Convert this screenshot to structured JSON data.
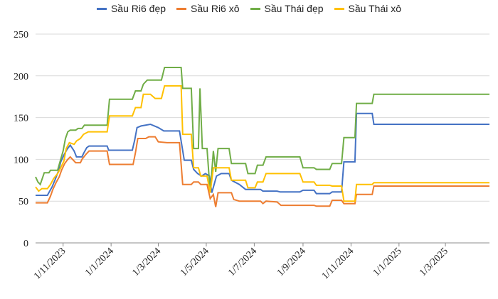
{
  "chart_data": {
    "type": "line",
    "title": "",
    "xlabel": "",
    "ylabel": "",
    "ylim": [
      0,
      250
    ],
    "yticks": [
      0,
      50,
      100,
      150,
      200,
      250
    ],
    "xlim": [
      "2023-09-27",
      "2025-04-26"
    ],
    "xticks": [
      "2023-11-01",
      "2024-01-01",
      "2024-03-01",
      "2024-05-01",
      "2024-07-01",
      "2024-09-01",
      "2024-11-01",
      "2025-01-01",
      "2025-03-01"
    ],
    "xtick_labels": [
      "1/11/2023",
      "1/1/2024",
      "1/3/2024",
      "1/5/2024",
      "1/7/2024",
      "1/9/2024",
      "1/11/2024",
      "1/1/2025",
      "1/3/2025"
    ],
    "grid": "horizontal",
    "legend_position": "top",
    "series": [
      {
        "name": "Sầu Ri6 đẹp",
        "color": "#4472c4",
        "points": [
          [
            "2023-09-27",
            57
          ],
          [
            "2023-10-12",
            57
          ],
          [
            "2023-10-15",
            62
          ],
          [
            "2023-10-18",
            67
          ],
          [
            "2023-10-22",
            76
          ],
          [
            "2023-10-26",
            86
          ],
          [
            "2023-10-29",
            97
          ],
          [
            "2023-11-02",
            105
          ],
          [
            "2023-11-06",
            112
          ],
          [
            "2023-11-10",
            117
          ],
          [
            "2023-11-15",
            110
          ],
          [
            "2023-11-18",
            103
          ],
          [
            "2023-11-25",
            103
          ],
          [
            "2023-11-27",
            107
          ],
          [
            "2023-12-01",
            114
          ],
          [
            "2023-12-04",
            116
          ],
          [
            "2023-12-27",
            116
          ],
          [
            "2023-12-29",
            111
          ],
          [
            "2024-01-28",
            111
          ],
          [
            "2024-01-31",
            123
          ],
          [
            "2024-02-03",
            138
          ],
          [
            "2024-02-08",
            140
          ],
          [
            "2024-02-20",
            142
          ],
          [
            "2024-03-01",
            138
          ],
          [
            "2024-03-08",
            134
          ],
          [
            "2024-03-28",
            134
          ],
          [
            "2024-04-03",
            99
          ],
          [
            "2024-04-12",
            99
          ],
          [
            "2024-04-15",
            88
          ],
          [
            "2024-04-20",
            83
          ],
          [
            "2024-04-25",
            80
          ],
          [
            "2024-04-30",
            83
          ],
          [
            "2024-05-05",
            80
          ],
          [
            "2024-05-08",
            60
          ],
          [
            "2024-05-11",
            70
          ],
          [
            "2024-05-14",
            80
          ],
          [
            "2024-05-20",
            83
          ],
          [
            "2024-05-30",
            83
          ],
          [
            "2024-06-02",
            75
          ],
          [
            "2024-06-12",
            70
          ],
          [
            "2024-06-20",
            64
          ],
          [
            "2024-07-09",
            64
          ],
          [
            "2024-07-12",
            62
          ],
          [
            "2024-07-30",
            62
          ],
          [
            "2024-08-03",
            61
          ],
          [
            "2024-08-28",
            61
          ],
          [
            "2024-09-01",
            63
          ],
          [
            "2024-09-15",
            63
          ],
          [
            "2024-09-18",
            59
          ],
          [
            "2024-10-05",
            59
          ],
          [
            "2024-10-08",
            61
          ],
          [
            "2024-10-20",
            61
          ],
          [
            "2024-10-23",
            97
          ],
          [
            "2024-11-06",
            97
          ],
          [
            "2024-11-08",
            155
          ],
          [
            "2024-11-28",
            155
          ],
          [
            "2024-11-30",
            142
          ],
          [
            "2025-04-26",
            142
          ]
        ]
      },
      {
        "name": "Sầu Ri6 xô",
        "color": "#ed7d31",
        "points": [
          [
            "2023-09-27",
            48
          ],
          [
            "2023-10-12",
            48
          ],
          [
            "2023-10-16",
            56
          ],
          [
            "2023-10-19",
            64
          ],
          [
            "2023-10-23",
            72
          ],
          [
            "2023-10-27",
            79
          ],
          [
            "2023-10-30",
            87
          ],
          [
            "2023-11-03",
            95
          ],
          [
            "2023-11-07",
            100
          ],
          [
            "2023-11-10",
            103
          ],
          [
            "2023-11-14",
            99
          ],
          [
            "2023-11-17",
            96
          ],
          [
            "2023-11-23",
            96
          ],
          [
            "2023-11-25",
            100
          ],
          [
            "2023-11-30",
            106
          ],
          [
            "2023-12-04",
            110
          ],
          [
            "2023-12-27",
            110
          ],
          [
            "2023-12-30",
            94
          ],
          [
            "2024-01-29",
            94
          ],
          [
            "2024-02-01",
            108
          ],
          [
            "2024-02-04",
            125
          ],
          [
            "2024-02-14",
            125
          ],
          [
            "2024-02-18",
            127
          ],
          [
            "2024-02-26",
            127
          ],
          [
            "2024-03-01",
            121
          ],
          [
            "2024-03-12",
            120
          ],
          [
            "2024-03-28",
            120
          ],
          [
            "2024-04-01",
            70
          ],
          [
            "2024-04-12",
            70
          ],
          [
            "2024-04-15",
            73
          ],
          [
            "2024-04-21",
            73
          ],
          [
            "2024-04-24",
            70
          ],
          [
            "2024-05-02",
            70
          ],
          [
            "2024-05-06",
            53
          ],
          [
            "2024-05-10",
            58
          ],
          [
            "2024-05-13",
            43
          ],
          [
            "2024-05-16",
            60
          ],
          [
            "2024-06-02",
            60
          ],
          [
            "2024-06-05",
            52
          ],
          [
            "2024-06-12",
            50
          ],
          [
            "2024-07-09",
            50
          ],
          [
            "2024-07-12",
            47
          ],
          [
            "2024-07-16",
            50
          ],
          [
            "2024-07-30",
            49
          ],
          [
            "2024-08-04",
            45
          ],
          [
            "2024-08-28",
            45
          ],
          [
            "2024-09-01",
            45
          ],
          [
            "2024-09-15",
            45
          ],
          [
            "2024-09-18",
            44
          ],
          [
            "2024-10-05",
            44
          ],
          [
            "2024-10-08",
            51
          ],
          [
            "2024-10-20",
            51
          ],
          [
            "2024-10-23",
            47
          ],
          [
            "2024-11-06",
            47
          ],
          [
            "2024-11-08",
            58
          ],
          [
            "2024-11-28",
            58
          ],
          [
            "2024-11-30",
            68
          ],
          [
            "2025-04-26",
            68
          ]
        ]
      },
      {
        "name": "Sầu Thái đẹp",
        "color": "#70ad47",
        "points": [
          [
            "2023-09-27",
            79
          ],
          [
            "2023-09-30",
            73
          ],
          [
            "2023-10-03",
            70
          ],
          [
            "2023-10-08",
            84
          ],
          [
            "2023-10-14",
            84
          ],
          [
            "2023-10-16",
            87
          ],
          [
            "2023-10-25",
            87
          ],
          [
            "2023-10-28",
            97
          ],
          [
            "2023-11-01",
            110
          ],
          [
            "2023-11-04",
            125
          ],
          [
            "2023-11-07",
            133
          ],
          [
            "2023-11-10",
            135
          ],
          [
            "2023-11-17",
            135
          ],
          [
            "2023-11-20",
            137
          ],
          [
            "2023-11-25",
            137
          ],
          [
            "2023-11-28",
            141
          ],
          [
            "2023-12-27",
            141
          ],
          [
            "2023-12-30",
            172
          ],
          [
            "2024-01-28",
            172
          ],
          [
            "2024-02-01",
            182
          ],
          [
            "2024-02-08",
            182
          ],
          [
            "2024-02-11",
            190
          ],
          [
            "2024-02-16",
            195
          ],
          [
            "2024-03-05",
            195
          ],
          [
            "2024-03-09",
            210
          ],
          [
            "2024-03-30",
            210
          ],
          [
            "2024-04-01",
            185
          ],
          [
            "2024-04-12",
            185
          ],
          [
            "2024-04-15",
            113
          ],
          [
            "2024-04-21",
            113
          ],
          [
            "2024-04-23",
            185
          ],
          [
            "2024-04-26",
            113
          ],
          [
            "2024-05-02",
            113
          ],
          [
            "2024-05-06",
            60
          ],
          [
            "2024-05-10",
            110
          ],
          [
            "2024-05-13",
            85
          ],
          [
            "2024-05-16",
            113
          ],
          [
            "2024-05-30",
            113
          ],
          [
            "2024-06-02",
            95
          ],
          [
            "2024-06-20",
            95
          ],
          [
            "2024-06-23",
            83
          ],
          [
            "2024-07-02",
            83
          ],
          [
            "2024-07-05",
            93
          ],
          [
            "2024-07-12",
            93
          ],
          [
            "2024-07-16",
            103
          ],
          [
            "2024-08-28",
            103
          ],
          [
            "2024-09-01",
            90
          ],
          [
            "2024-09-15",
            90
          ],
          [
            "2024-09-18",
            88
          ],
          [
            "2024-10-05",
            88
          ],
          [
            "2024-10-08",
            95
          ],
          [
            "2024-10-20",
            95
          ],
          [
            "2024-10-23",
            126
          ],
          [
            "2024-11-06",
            126
          ],
          [
            "2024-11-08",
            167
          ],
          [
            "2024-11-28",
            167
          ],
          [
            "2024-11-30",
            178
          ],
          [
            "2025-04-26",
            178
          ]
        ]
      },
      {
        "name": "Sầu Thái xô",
        "color": "#ffc000",
        "points": [
          [
            "2023-09-27",
            67
          ],
          [
            "2023-10-01",
            62
          ],
          [
            "2023-10-05",
            65
          ],
          [
            "2023-10-12",
            65
          ],
          [
            "2023-10-16",
            70
          ],
          [
            "2023-10-20",
            77
          ],
          [
            "2023-10-25",
            83
          ],
          [
            "2023-10-29",
            90
          ],
          [
            "2023-11-02",
            98
          ],
          [
            "2023-11-05",
            113
          ],
          [
            "2023-11-09",
            120
          ],
          [
            "2023-11-15",
            118
          ],
          [
            "2023-11-18",
            122
          ],
          [
            "2023-11-23",
            125
          ],
          [
            "2023-11-27",
            130
          ],
          [
            "2023-12-03",
            133
          ],
          [
            "2023-12-27",
            133
          ],
          [
            "2023-12-30",
            152
          ],
          [
            "2024-01-28",
            152
          ],
          [
            "2024-02-01",
            162
          ],
          [
            "2024-02-08",
            162
          ],
          [
            "2024-02-11",
            178
          ],
          [
            "2024-02-20",
            178
          ],
          [
            "2024-02-26",
            173
          ],
          [
            "2024-03-05",
            173
          ],
          [
            "2024-03-09",
            188
          ],
          [
            "2024-03-30",
            188
          ],
          [
            "2024-04-01",
            130
          ],
          [
            "2024-04-12",
            130
          ],
          [
            "2024-04-15",
            90
          ],
          [
            "2024-04-21",
            90
          ],
          [
            "2024-04-24",
            80
          ],
          [
            "2024-05-02",
            80
          ],
          [
            "2024-05-06",
            60
          ],
          [
            "2024-05-10",
            90
          ],
          [
            "2024-05-30",
            90
          ],
          [
            "2024-06-02",
            75
          ],
          [
            "2024-06-20",
            75
          ],
          [
            "2024-06-23",
            66
          ],
          [
            "2024-07-02",
            66
          ],
          [
            "2024-07-05",
            73
          ],
          [
            "2024-07-12",
            73
          ],
          [
            "2024-07-16",
            83
          ],
          [
            "2024-08-28",
            83
          ],
          [
            "2024-09-01",
            73
          ],
          [
            "2024-09-15",
            73
          ],
          [
            "2024-09-18",
            69
          ],
          [
            "2024-10-05",
            69
          ],
          [
            "2024-10-08",
            68
          ],
          [
            "2024-10-20",
            68
          ],
          [
            "2024-10-23",
            50
          ],
          [
            "2024-11-06",
            50
          ],
          [
            "2024-11-08",
            70
          ],
          [
            "2024-11-28",
            70
          ],
          [
            "2024-11-30",
            72
          ],
          [
            "2025-04-26",
            72
          ]
        ]
      }
    ]
  }
}
